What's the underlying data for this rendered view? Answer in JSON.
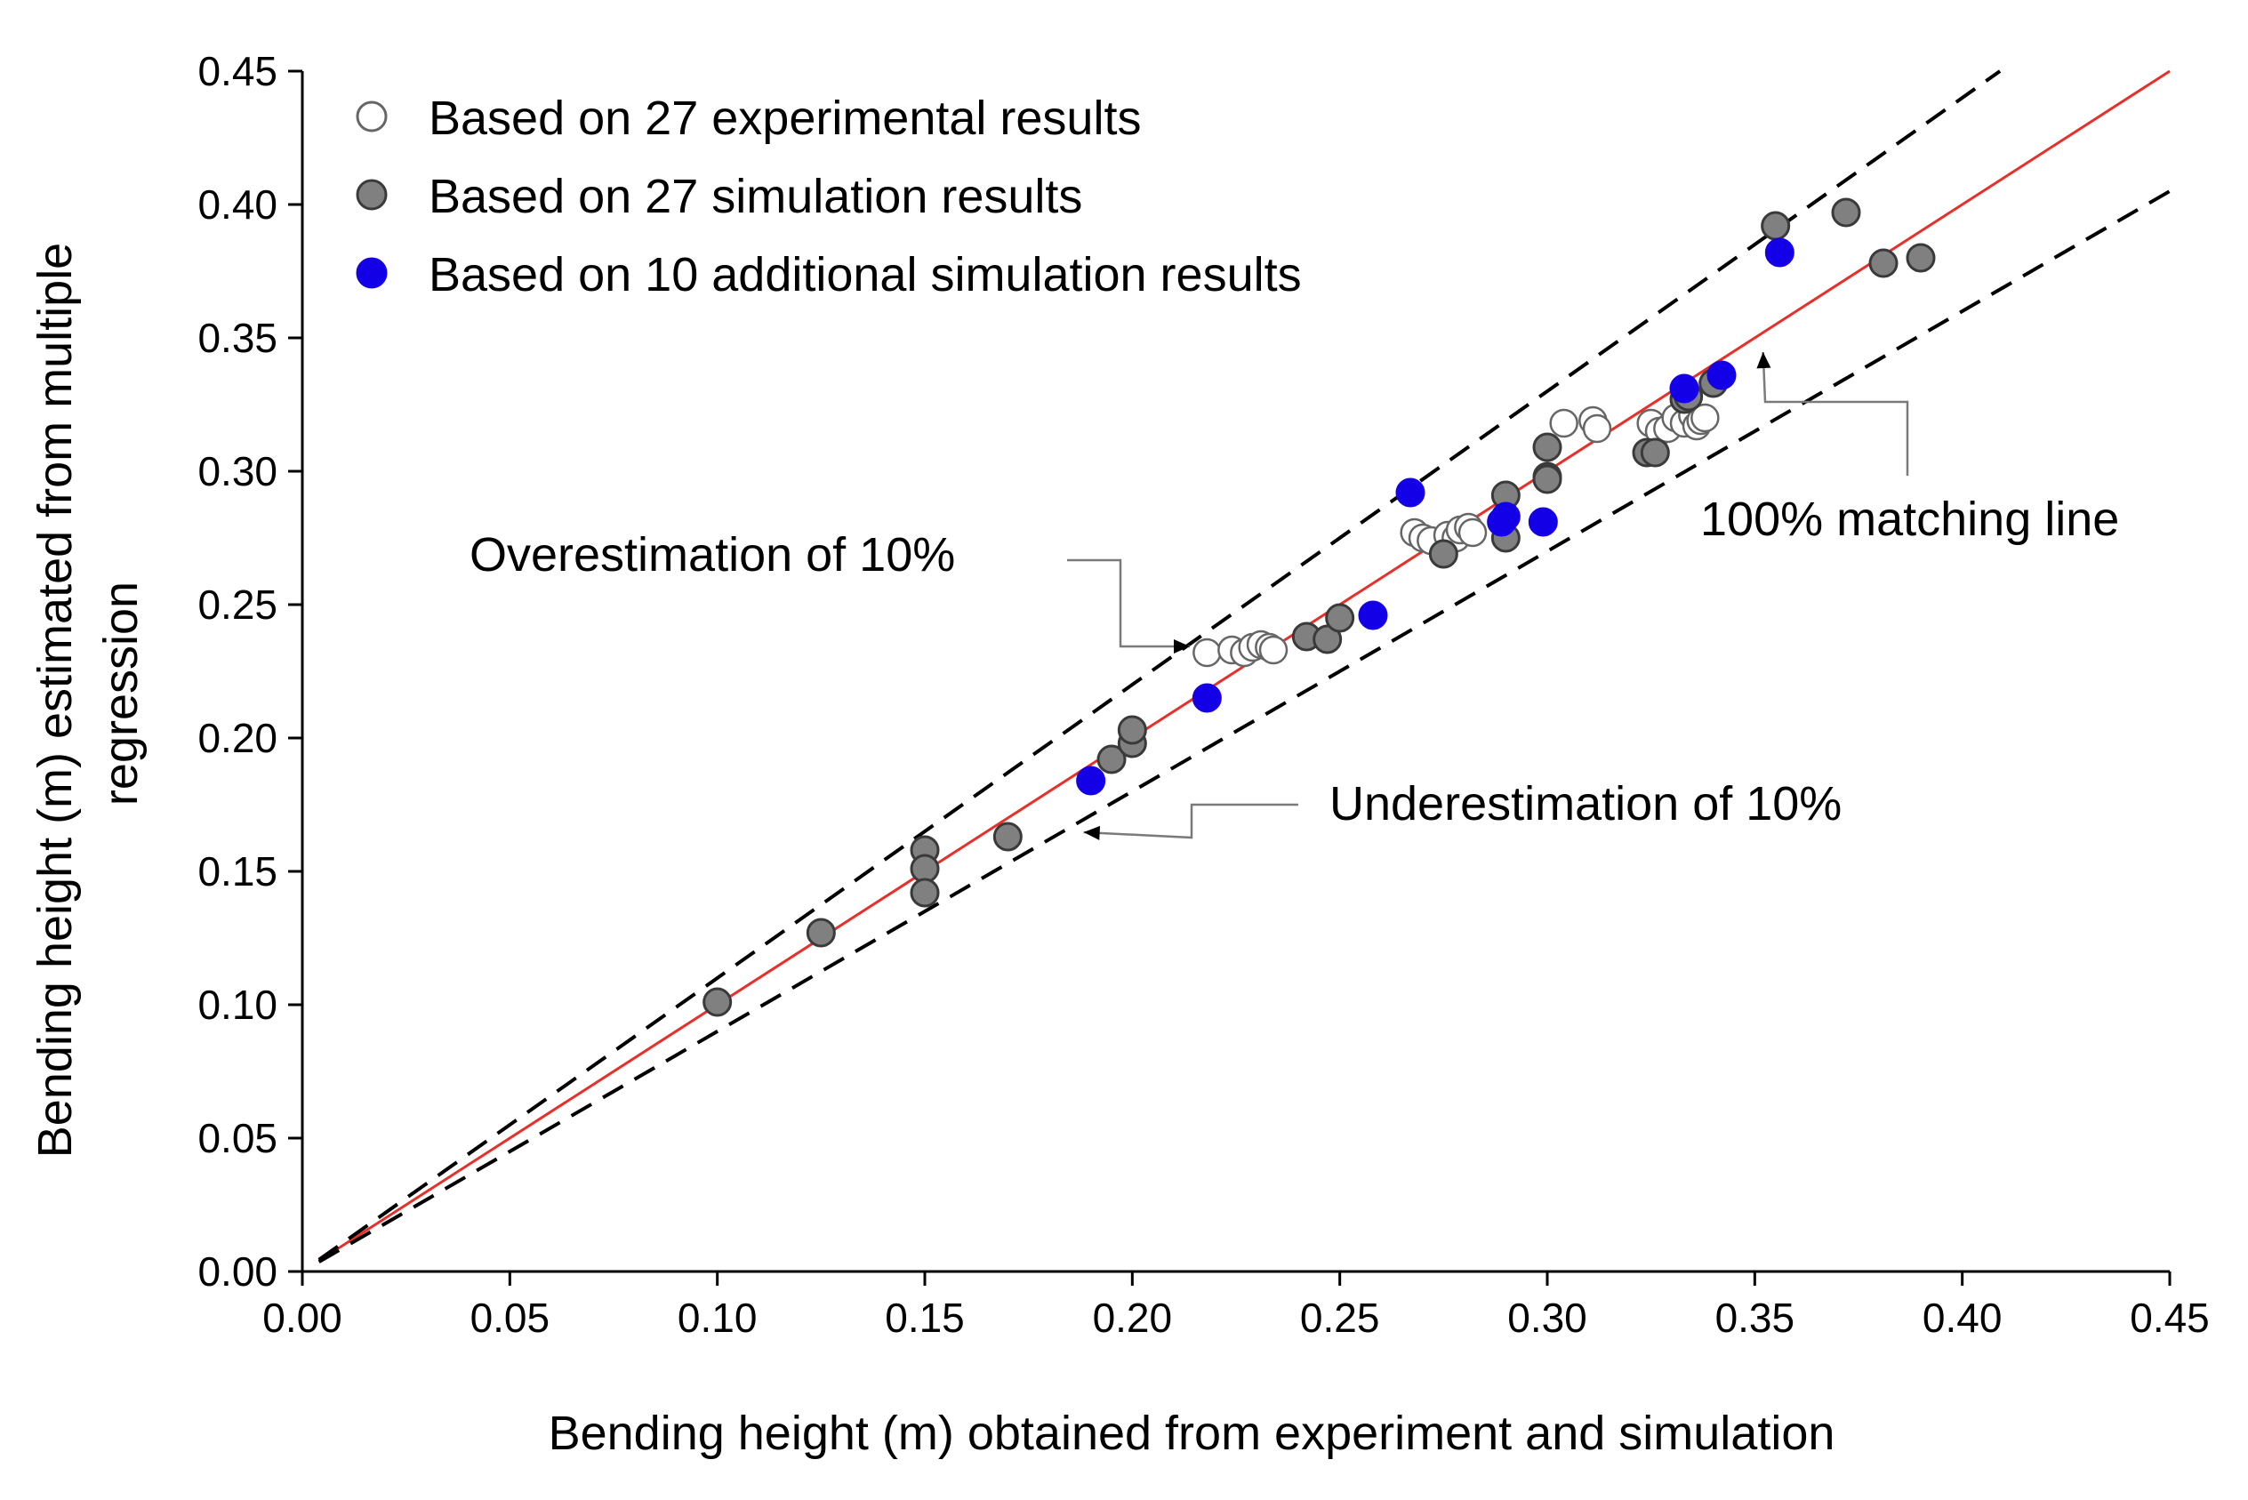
{
  "chart_data": {
    "type": "scatter",
    "title": "",
    "xlabel": "Bending height (m) obtained from experiment and simulation",
    "ylabel_lines": [
      "Bending height (m) estimated from multiple",
      "regression"
    ],
    "xlim": [
      0,
      0.45
    ],
    "ylim": [
      0,
      0.45
    ],
    "x_ticks": [
      "0.00",
      "0.05",
      "0.10",
      "0.15",
      "0.20",
      "0.25",
      "0.30",
      "0.35",
      "0.40",
      "0.45"
    ],
    "y_ticks": [
      "0.00",
      "0.05",
      "0.10",
      "0.15",
      "0.20",
      "0.25",
      "0.30",
      "0.35",
      "0.40",
      "0.45"
    ],
    "grid": false,
    "legend_position": "top-left",
    "series": [
      {
        "name": "Based on 27 experimental results",
        "marker": "open-circle",
        "color": "#ffffff",
        "edge": "#666666",
        "points": [
          [
            0.218,
            0.232
          ],
          [
            0.224,
            0.233
          ],
          [
            0.227,
            0.232
          ],
          [
            0.229,
            0.234
          ],
          [
            0.231,
            0.235
          ],
          [
            0.233,
            0.234
          ],
          [
            0.234,
            0.233
          ],
          [
            0.268,
            0.277
          ],
          [
            0.27,
            0.275
          ],
          [
            0.272,
            0.274
          ],
          [
            0.276,
            0.276
          ],
          [
            0.278,
            0.275
          ],
          [
            0.279,
            0.278
          ],
          [
            0.281,
            0.279
          ],
          [
            0.282,
            0.277
          ],
          [
            0.304,
            0.318
          ],
          [
            0.311,
            0.319
          ],
          [
            0.312,
            0.316
          ],
          [
            0.325,
            0.318
          ],
          [
            0.327,
            0.315
          ],
          [
            0.329,
            0.316
          ],
          [
            0.331,
            0.32
          ],
          [
            0.333,
            0.318
          ],
          [
            0.335,
            0.321
          ],
          [
            0.336,
            0.317
          ],
          [
            0.337,
            0.319
          ],
          [
            0.338,
            0.32
          ]
        ]
      },
      {
        "name": "Based on 27 simulation results",
        "marker": "filled-circle",
        "color": "#808080",
        "edge": "#3a3a3a",
        "points": [
          [
            0.1,
            0.101
          ],
          [
            0.125,
            0.127
          ],
          [
            0.15,
            0.158
          ],
          [
            0.15,
            0.151
          ],
          [
            0.15,
            0.142
          ],
          [
            0.17,
            0.163
          ],
          [
            0.195,
            0.192
          ],
          [
            0.2,
            0.198
          ],
          [
            0.2,
            0.203
          ],
          [
            0.242,
            0.238
          ],
          [
            0.247,
            0.237
          ],
          [
            0.25,
            0.245
          ],
          [
            0.275,
            0.269
          ],
          [
            0.29,
            0.291
          ],
          [
            0.29,
            0.275
          ],
          [
            0.3,
            0.309
          ],
          [
            0.3,
            0.298
          ],
          [
            0.3,
            0.297
          ],
          [
            0.324,
            0.307
          ],
          [
            0.326,
            0.307
          ],
          [
            0.333,
            0.327
          ],
          [
            0.34,
            0.333
          ],
          [
            0.355,
            0.392
          ],
          [
            0.372,
            0.397
          ],
          [
            0.381,
            0.378
          ],
          [
            0.39,
            0.38
          ],
          [
            0.334,
            0.328
          ]
        ]
      },
      {
        "name": "Based on 10 additional simulation results",
        "marker": "filled-circle",
        "color": "#1400e6",
        "edge": "#1400e6",
        "points": [
          [
            0.19,
            0.184
          ],
          [
            0.218,
            0.215
          ],
          [
            0.258,
            0.246
          ],
          [
            0.267,
            0.292
          ],
          [
            0.289,
            0.281
          ],
          [
            0.299,
            0.281
          ],
          [
            0.333,
            0.331
          ],
          [
            0.342,
            0.336
          ],
          [
            0.356,
            0.382
          ],
          [
            0.29,
            0.283
          ]
        ]
      }
    ],
    "reference_lines": [
      {
        "name": "100% matching line",
        "slope": 1.0,
        "style": "solid",
        "color": "#e8302a"
      },
      {
        "name": "Overestimation of 10%",
        "slope": 1.1,
        "style": "dashed",
        "color": "#000000"
      },
      {
        "name": "Underestimation of 10%",
        "slope": 0.9,
        "style": "dashed",
        "color": "#000000"
      }
    ],
    "annotations": [
      {
        "text": "Overestimation of 10%",
        "target": [
          0.21,
          0.235
        ]
      },
      {
        "text": "Underestimation of 10%",
        "target": [
          0.19,
          0.163
        ]
      },
      {
        "text": "100% matching line",
        "target": [
          0.352,
          0.352
        ]
      }
    ]
  }
}
